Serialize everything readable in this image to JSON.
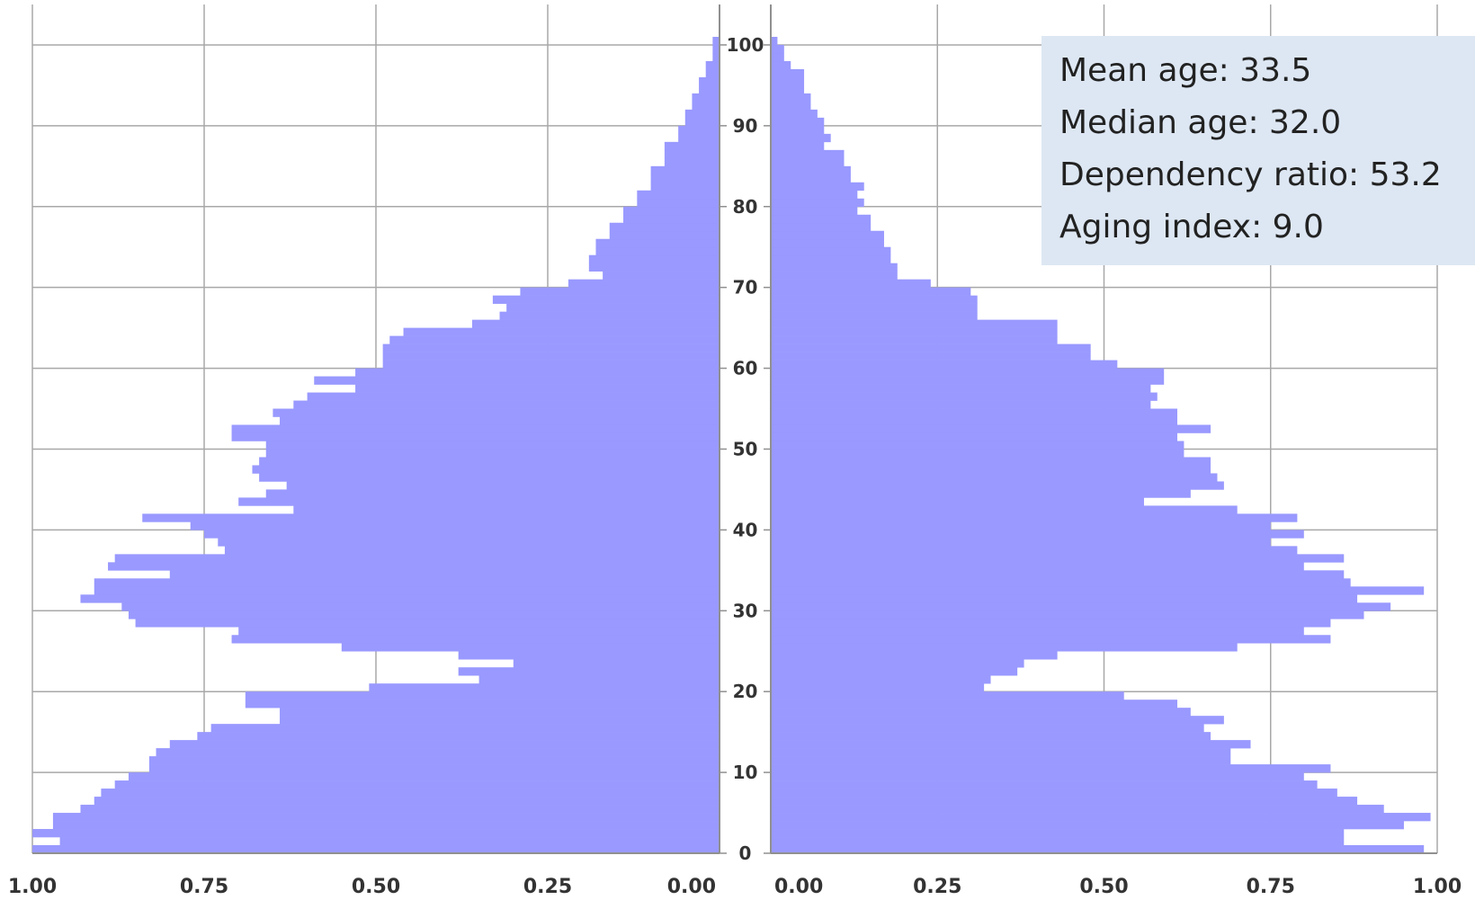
{
  "stats": {
    "mean_age": "Mean age: 33.5",
    "median_age": "Median age: 32.0",
    "dependency_ratio": "Dependency ratio: 53.2",
    "aging_index": "Aging index: 9.0"
  },
  "colors": {
    "bar": "#9999ff",
    "grid": "#a8a8a8",
    "axis": "#909090",
    "tick_text": "#333333",
    "stats_bg": "#dde7f3"
  },
  "chart_data": {
    "type": "bar",
    "orientation": "horizontal",
    "title": "",
    "xlabel": "",
    "ylabel": "",
    "ages": [
      0,
      1,
      2,
      3,
      4,
      5,
      6,
      7,
      8,
      9,
      10,
      11,
      12,
      13,
      14,
      15,
      16,
      17,
      18,
      19,
      20,
      21,
      22,
      23,
      24,
      25,
      26,
      27,
      28,
      29,
      30,
      31,
      32,
      33,
      34,
      35,
      36,
      37,
      38,
      39,
      40,
      41,
      42,
      43,
      44,
      45,
      46,
      47,
      48,
      49,
      50,
      51,
      52,
      53,
      54,
      55,
      56,
      57,
      58,
      59,
      60,
      61,
      62,
      63,
      64,
      65,
      66,
      67,
      68,
      69,
      70,
      71,
      72,
      73,
      74,
      75,
      76,
      77,
      78,
      79,
      80,
      81,
      82,
      83,
      84,
      85,
      86,
      87,
      88,
      89,
      90,
      91,
      92,
      93,
      94,
      95,
      96,
      97,
      98,
      99,
      100
    ],
    "ylim": [
      0,
      100
    ],
    "y_ticks": [
      0,
      10,
      20,
      30,
      40,
      50,
      60,
      70,
      80,
      90,
      100
    ],
    "x_ticks": [
      1.0,
      0.75,
      0.5,
      0.25,
      0.0
    ],
    "x_tick_labels_left": [
      "1.00",
      "0.75",
      "0.50",
      "0.25",
      "0.00"
    ],
    "x_tick_labels_right": [
      "0.00",
      "0.25",
      "0.50",
      "0.75",
      "1.00"
    ],
    "grid": true,
    "series": [
      {
        "side": "left",
        "values": [
          1.0,
          0.96,
          1.0,
          0.97,
          0.97,
          0.93,
          0.91,
          0.9,
          0.88,
          0.86,
          0.83,
          0.83,
          0.82,
          0.8,
          0.76,
          0.74,
          0.64,
          0.64,
          0.69,
          0.69,
          0.51,
          0.35,
          0.38,
          0.3,
          0.38,
          0.55,
          0.71,
          0.7,
          0.85,
          0.86,
          0.87,
          0.93,
          0.91,
          0.91,
          0.8,
          0.89,
          0.88,
          0.72,
          0.73,
          0.75,
          0.77,
          0.84,
          0.62,
          0.7,
          0.66,
          0.63,
          0.67,
          0.68,
          0.67,
          0.66,
          0.66,
          0.71,
          0.71,
          0.64,
          0.65,
          0.62,
          0.6,
          0.53,
          0.59,
          0.53,
          0.49,
          0.49,
          0.49,
          0.48,
          0.46,
          0.36,
          0.32,
          0.31,
          0.33,
          0.29,
          0.22,
          0.17,
          0.19,
          0.19,
          0.18,
          0.18,
          0.16,
          0.16,
          0.14,
          0.14,
          0.12,
          0.12,
          0.1,
          0.1,
          0.1,
          0.08,
          0.08,
          0.08,
          0.06,
          0.06,
          0.05,
          0.05,
          0.04,
          0.04,
          0.03,
          0.03,
          0.02,
          0.02,
          0.01,
          0.01,
          0.01
        ]
      },
      {
        "side": "right",
        "values": [
          0.98,
          0.86,
          0.86,
          0.95,
          0.99,
          0.92,
          0.88,
          0.85,
          0.82,
          0.8,
          0.84,
          0.69,
          0.69,
          0.72,
          0.66,
          0.65,
          0.68,
          0.63,
          0.61,
          0.53,
          0.32,
          0.33,
          0.37,
          0.38,
          0.43,
          0.7,
          0.84,
          0.8,
          0.84,
          0.89,
          0.93,
          0.88,
          0.98,
          0.87,
          0.86,
          0.8,
          0.86,
          0.79,
          0.75,
          0.8,
          0.75,
          0.79,
          0.7,
          0.56,
          0.63,
          0.68,
          0.67,
          0.66,
          0.66,
          0.62,
          0.62,
          0.61,
          0.66,
          0.61,
          0.61,
          0.57,
          0.58,
          0.57,
          0.59,
          0.59,
          0.52,
          0.48,
          0.48,
          0.43,
          0.43,
          0.43,
          0.31,
          0.31,
          0.31,
          0.3,
          0.24,
          0.19,
          0.19,
          0.18,
          0.18,
          0.17,
          0.17,
          0.15,
          0.15,
          0.13,
          0.14,
          0.13,
          0.14,
          0.12,
          0.12,
          0.11,
          0.11,
          0.08,
          0.09,
          0.08,
          0.08,
          0.07,
          0.06,
          0.06,
          0.05,
          0.05,
          0.05,
          0.03,
          0.02,
          0.02,
          0.01
        ]
      }
    ]
  }
}
